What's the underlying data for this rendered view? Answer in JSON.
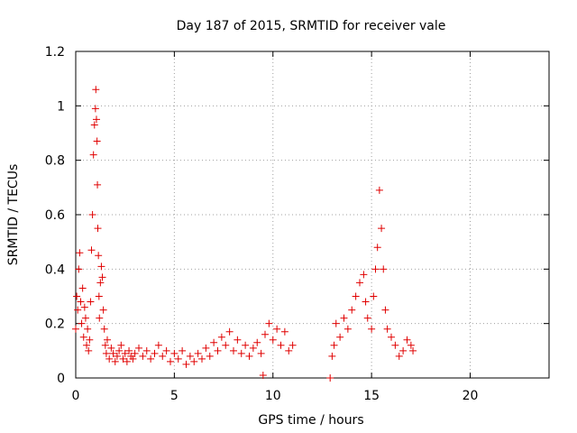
{
  "chart_data": {
    "type": "scatter",
    "title": "Day 187 of 2015, SRMTID for receiver vale",
    "xlabel": "GPS time / hours",
    "ylabel": "SRMTID / TECUs",
    "xlim": [
      0,
      24
    ],
    "ylim": [
      0,
      1.2
    ],
    "xticks": [
      0,
      5,
      10,
      15,
      20
    ],
    "xtick_labels": [
      "0",
      "5",
      "10",
      "15",
      "20"
    ],
    "yticks": [
      0,
      0.2,
      0.4,
      0.6,
      0.8,
      1,
      1.2
    ],
    "ytick_labels": [
      "0",
      "0.2",
      "0.4",
      "0.6",
      "0.8",
      "1",
      "1.2"
    ],
    "grid": true,
    "marker": "+",
    "series": [
      {
        "name": "SRMTID",
        "color": "#e00000",
        "x": [
          0.0,
          0.05,
          0.1,
          0.15,
          0.2,
          0.25,
          0.3,
          0.35,
          0.4,
          0.45,
          0.5,
          0.55,
          0.6,
          0.65,
          0.7,
          0.75,
          0.8,
          0.85,
          0.9,
          0.95,
          1.0,
          1.02,
          1.05,
          1.08,
          1.1,
          1.12,
          1.15,
          1.18,
          1.2,
          1.25,
          1.3,
          1.35,
          1.4,
          1.45,
          1.5,
          1.55,
          1.6,
          1.7,
          1.8,
          1.9,
          2.0,
          2.1,
          2.2,
          2.3,
          2.4,
          2.5,
          2.6,
          2.7,
          2.8,
          2.9,
          3.0,
          3.2,
          3.4,
          3.6,
          3.8,
          4.0,
          4.2,
          4.4,
          4.6,
          4.8,
          5.0,
          5.2,
          5.4,
          5.6,
          5.8,
          6.0,
          6.2,
          6.4,
          6.6,
          6.8,
          7.0,
          7.2,
          7.4,
          7.6,
          7.8,
          8.0,
          8.2,
          8.4,
          8.6,
          8.8,
          9.0,
          9.2,
          9.4,
          9.5,
          9.6,
          9.8,
          10.0,
          10.2,
          10.4,
          10.6,
          10.8,
          11.0,
          12.9,
          13.0,
          13.1,
          13.2,
          13.4,
          13.6,
          13.8,
          14.0,
          14.2,
          14.4,
          14.6,
          14.7,
          14.8,
          15.0,
          15.1,
          15.2,
          15.3,
          15.4,
          15.5,
          15.6,
          15.7,
          15.8,
          16.0,
          16.2,
          16.4,
          16.6,
          16.8,
          17.0,
          17.1
        ],
        "values": [
          0.18,
          0.3,
          0.25,
          0.4,
          0.46,
          0.28,
          0.2,
          0.33,
          0.15,
          0.26,
          0.22,
          0.12,
          0.18,
          0.1,
          0.14,
          0.28,
          0.47,
          0.6,
          0.82,
          0.93,
          0.99,
          1.06,
          0.95,
          0.87,
          0.71,
          0.55,
          0.45,
          0.3,
          0.22,
          0.35,
          0.41,
          0.37,
          0.25,
          0.18,
          0.12,
          0.09,
          0.14,
          0.07,
          0.11,
          0.09,
          0.06,
          0.08,
          0.1,
          0.12,
          0.07,
          0.09,
          0.06,
          0.1,
          0.08,
          0.07,
          0.09,
          0.11,
          0.08,
          0.1,
          0.07,
          0.09,
          0.12,
          0.08,
          0.1,
          0.06,
          0.09,
          0.07,
          0.1,
          0.05,
          0.08,
          0.06,
          0.09,
          0.07,
          0.11,
          0.08,
          0.13,
          0.1,
          0.15,
          0.12,
          0.17,
          0.1,
          0.14,
          0.09,
          0.12,
          0.08,
          0.11,
          0.13,
          0.09,
          0.01,
          0.16,
          0.2,
          0.14,
          0.18,
          0.12,
          0.17,
          0.1,
          0.12,
          0.0,
          0.08,
          0.12,
          0.2,
          0.15,
          0.22,
          0.18,
          0.25,
          0.3,
          0.35,
          0.38,
          0.28,
          0.22,
          0.18,
          0.3,
          0.4,
          0.48,
          0.69,
          0.55,
          0.4,
          0.25,
          0.18,
          0.15,
          0.12,
          0.08,
          0.1,
          0.14,
          0.12,
          0.1
        ]
      }
    ]
  }
}
